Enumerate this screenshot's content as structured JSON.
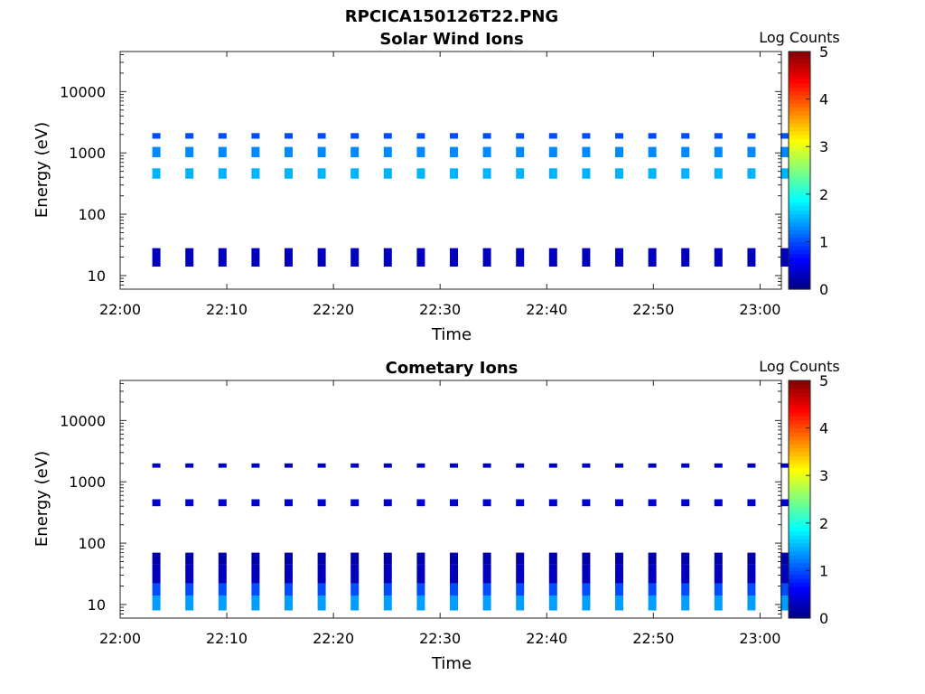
{
  "figure": {
    "title": "RPCICA150126T22.PNG"
  },
  "colormap": "jet",
  "chart_data": [
    {
      "type": "heatmap",
      "title": "Solar Wind Ions",
      "xlabel": "Time",
      "ylabel": "Energy (eV)",
      "yscale": "log",
      "xlim": [
        "22:00",
        "23:02"
      ],
      "ylim": [
        6,
        45000
      ],
      "x_ticks": [
        "22:00",
        "22:10",
        "22:20",
        "22:30",
        "22:40",
        "22:50",
        "23:00"
      ],
      "y_ticks": [
        "10",
        "100",
        "1000",
        "10000"
      ],
      "colorbar": {
        "label": "Log Counts",
        "range": [
          0,
          5
        ],
        "ticks": [
          "0",
          "1",
          "2",
          "3",
          "4",
          "5"
        ]
      },
      "grid": false,
      "scan_minutes": [
        3.4,
        6.5,
        9.6,
        12.7,
        15.8,
        18.9,
        22.0,
        25.1,
        28.2,
        31.3,
        34.4,
        37.5,
        40.6,
        43.7,
        46.8,
        49.9,
        53.0,
        56.1,
        59.2,
        62.3
      ],
      "bands": [
        {
          "energy_low": 14,
          "energy_high": 28,
          "log_counts": 0.3
        },
        {
          "energy_low": 380,
          "energy_high": 560,
          "log_counts": 1.5
        },
        {
          "energy_low": 850,
          "energy_high": 1250,
          "log_counts": 1.3
        },
        {
          "energy_low": 1700,
          "energy_high": 2100,
          "log_counts": 1.0
        }
      ]
    },
    {
      "type": "heatmap",
      "title": "Cometary Ions",
      "xlabel": "Time",
      "ylabel": "Energy (eV)",
      "yscale": "log",
      "xlim": [
        "22:00",
        "23:02"
      ],
      "ylim": [
        6,
        45000
      ],
      "x_ticks": [
        "22:00",
        "22:10",
        "22:20",
        "22:30",
        "22:40",
        "22:50",
        "23:00"
      ],
      "y_ticks": [
        "10",
        "100",
        "1000",
        "10000"
      ],
      "colorbar": {
        "label": "Log Counts",
        "range": [
          0,
          5
        ],
        "ticks": [
          "0",
          "1",
          "2",
          "3",
          "4",
          "5"
        ]
      },
      "grid": false,
      "scan_minutes": [
        3.4,
        6.5,
        9.6,
        12.7,
        15.8,
        18.9,
        22.0,
        25.1,
        28.2,
        31.3,
        34.4,
        37.5,
        40.6,
        43.7,
        46.8,
        49.9,
        53.0,
        56.1,
        59.2,
        62.3
      ],
      "bands": [
        {
          "energy_low": 8,
          "energy_high": 14,
          "log_counts": 1.4
        },
        {
          "energy_low": 14,
          "energy_high": 22,
          "log_counts": 1.0
        },
        {
          "energy_low": 22,
          "energy_high": 45,
          "log_counts": 0.3
        },
        {
          "energy_low": 45,
          "energy_high": 70,
          "log_counts": 0.2
        },
        {
          "energy_low": 400,
          "energy_high": 520,
          "log_counts": 0.4
        },
        {
          "energy_low": 1700,
          "energy_high": 2000,
          "log_counts": 0.3
        }
      ]
    }
  ]
}
